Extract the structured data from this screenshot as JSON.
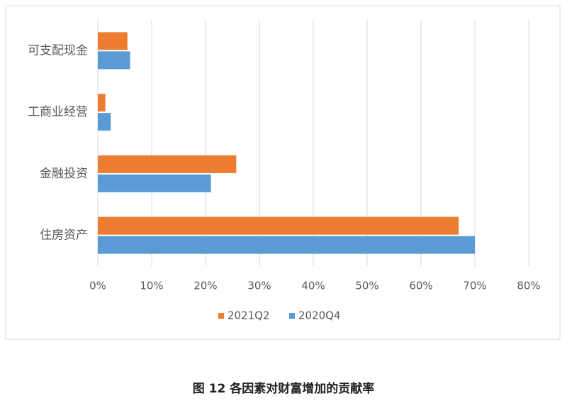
{
  "chart_data": {
    "type": "barh",
    "title": "图 12 各因素对财富增加的贡献率",
    "categories": [
      "可支配现金",
      "工商业经营",
      "金融投资",
      "住房资产"
    ],
    "series": [
      {
        "name": "2021Q2",
        "color": "#ed7d31",
        "values": [
          5.5,
          1.4,
          25.7,
          67.0
        ]
      },
      {
        "name": "2020Q4",
        "color": "#5b9bd5",
        "values": [
          6.0,
          2.4,
          21.0,
          70.0
        ]
      }
    ],
    "xlim": [
      0,
      80
    ],
    "xticks": [
      {
        "value": 0,
        "label": "0%"
      },
      {
        "value": 10,
        "label": "10%"
      },
      {
        "value": 20,
        "label": "20%"
      },
      {
        "value": 30,
        "label": "30%"
      },
      {
        "value": 40,
        "label": "40%"
      },
      {
        "value": 50,
        "label": "50%"
      },
      {
        "value": 60,
        "label": "60%"
      },
      {
        "value": 70,
        "label": "70%"
      },
      {
        "value": 80,
        "label": "80%"
      }
    ],
    "grid": true,
    "legend": "bottom"
  }
}
